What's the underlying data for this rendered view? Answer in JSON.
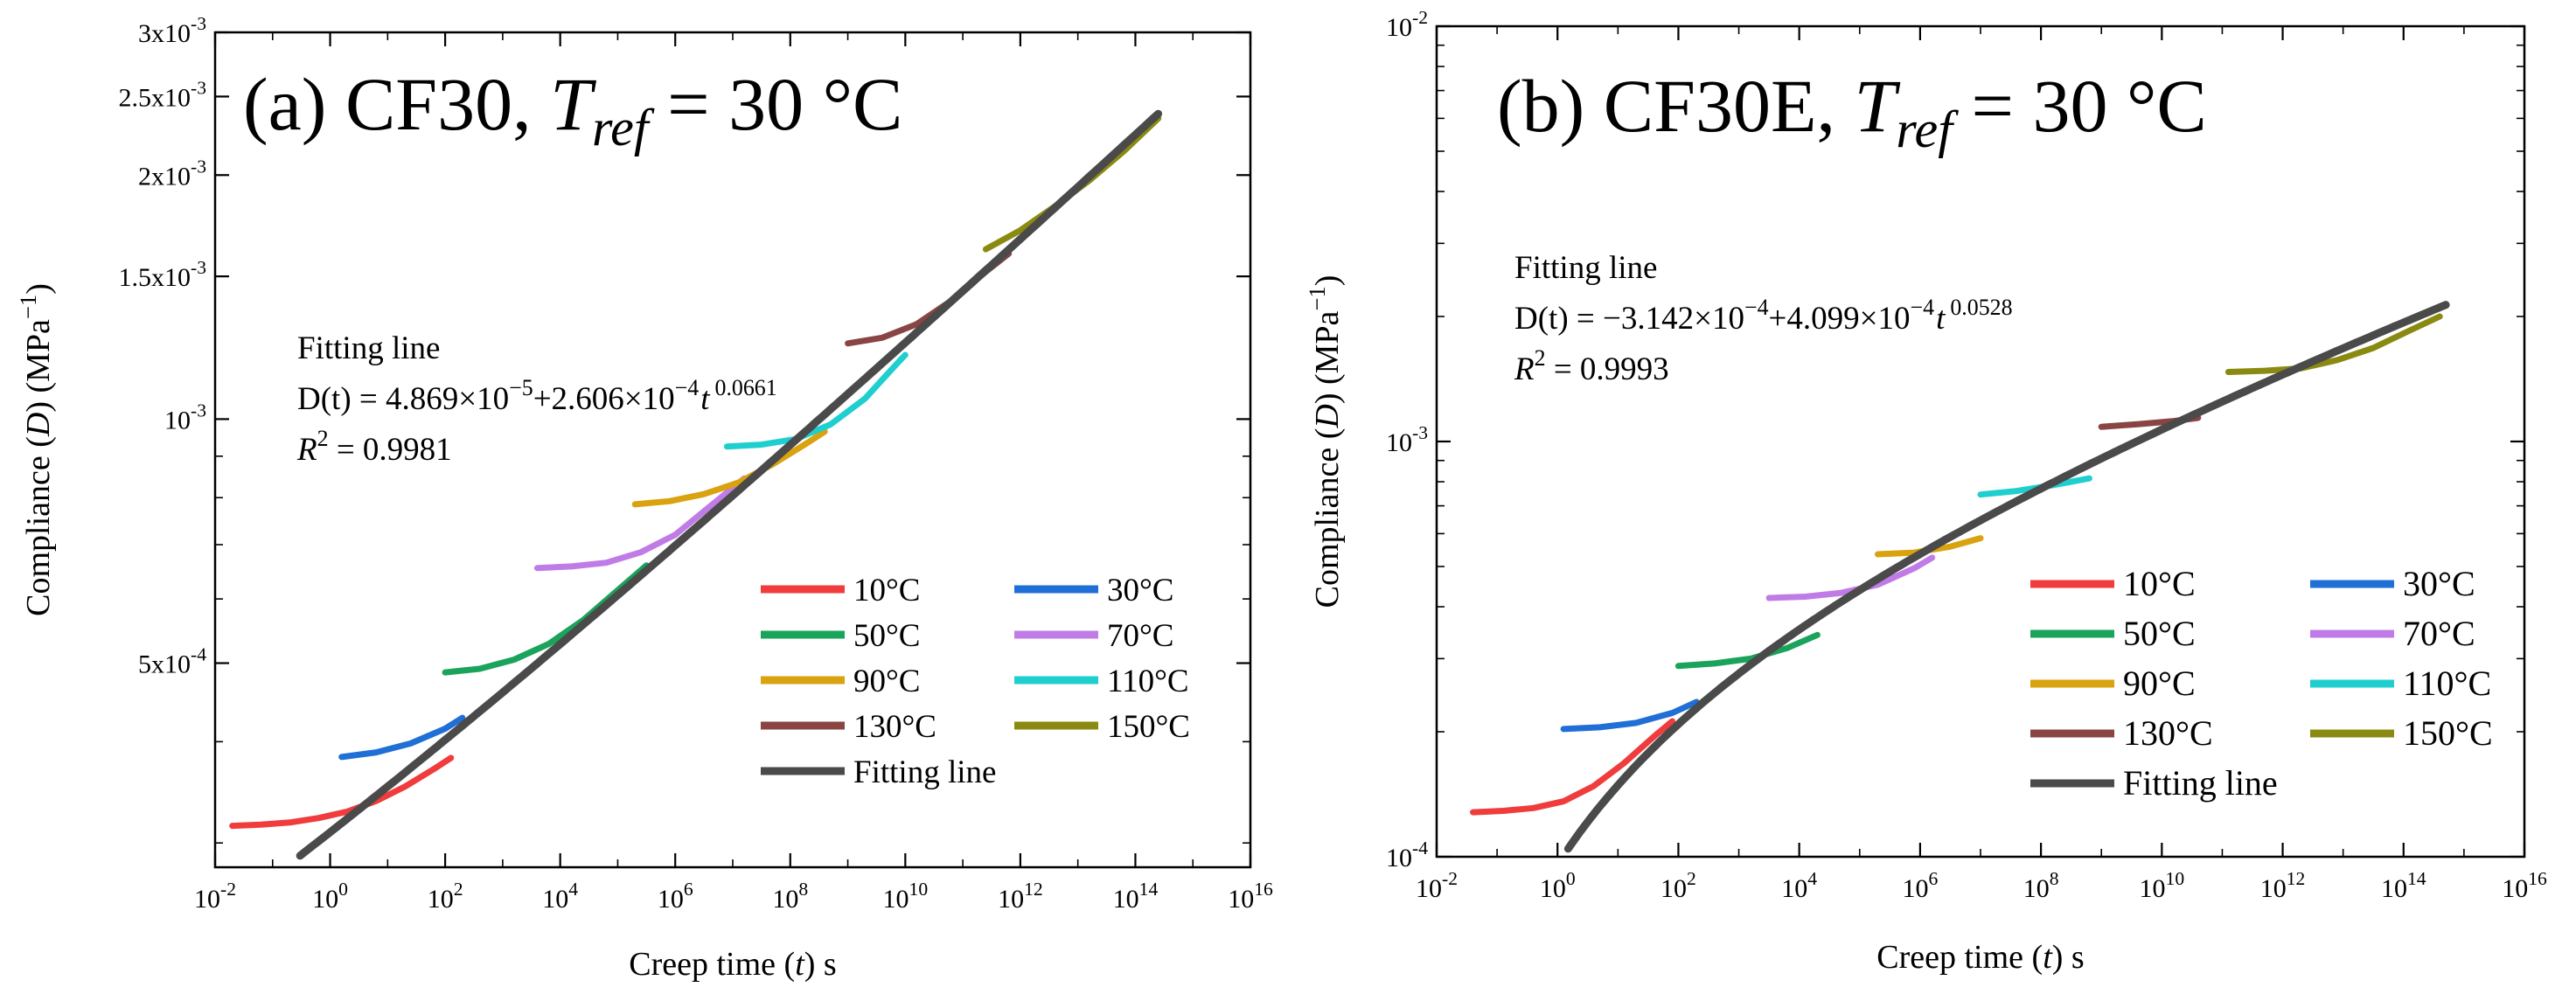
{
  "chart_data": [
    {
      "id": "a",
      "type": "line",
      "title": {
        "prefix": "(a) CF30, ",
        "T": "T",
        "sub": "ref",
        "suffix": " = 30 °C"
      },
      "xlabel": {
        "pre": "Creep time (",
        "var": "t",
        "post": ") s"
      },
      "ylabel": {
        "pre": "Compliance (",
        "var": "D",
        "post": ") (MPa"
      },
      "x_scale": "log",
      "y_scale": "log",
      "xlim": [
        0.01,
        1e+16
      ],
      "ylim": [
        0.00028,
        0.003
      ],
      "x_ticks": [
        {
          "v": 0.01,
          "base": "10",
          "exp": "-2"
        },
        {
          "v": 1,
          "base": "10",
          "exp": "0"
        },
        {
          "v": 100,
          "base": "10",
          "exp": "2"
        },
        {
          "v": 10000.0,
          "base": "10",
          "exp": "4"
        },
        {
          "v": 1000000.0,
          "base": "10",
          "exp": "6"
        },
        {
          "v": 100000000.0,
          "base": "10",
          "exp": "8"
        },
        {
          "v": 10000000000.0,
          "base": "10",
          "exp": "10"
        },
        {
          "v": 1000000000000.0,
          "base": "10",
          "exp": "12"
        },
        {
          "v": 100000000000000.0,
          "base": "10",
          "exp": "14"
        },
        {
          "v": 1e+16,
          "base": "10",
          "exp": "16"
        }
      ],
      "y_ticks": [
        {
          "v": 0.0005,
          "base": "5x10",
          "exp": "-4"
        },
        {
          "v": 0.001,
          "base": "10",
          "exp": "-3"
        },
        {
          "v": 0.0015,
          "base": "1.5x10",
          "exp": "-3"
        },
        {
          "v": 0.002,
          "base": "2x10",
          "exp": "-3"
        },
        {
          "v": 0.0025,
          "base": "2.5x10",
          "exp": "-3"
        },
        {
          "v": 0.003,
          "base": "3x10",
          "exp": "-3"
        }
      ],
      "fit_text": {
        "heading": "Fitting line",
        "eq_pre": "D(t) = 4.869×10",
        "eq_e1": "−5",
        "eq_mid": "+2.606×10",
        "eq_e2": "−4",
        "eq_t": "t",
        "eq_e3": "0.0661",
        "r2_label": "R",
        "r2_value": " = 0.9981"
      },
      "fit": {
        "a": 4.869e-05,
        "b": 0.0002606,
        "n": 0.0661,
        "x_from": 0.3,
        "x_to": 250000000000000.0,
        "name": "Fitting line",
        "color": "#4a4a4a"
      },
      "series": [
        {
          "name": "10°C",
          "color": "#f03c3c",
          "log_x": [
            -1.7,
            -1.2,
            -0.7,
            -0.2,
            0.3,
            0.8,
            1.3,
            1.8,
            2.1
          ],
          "y": [
            0.000315,
            0.000316,
            0.000318,
            0.000322,
            0.000328,
            0.000338,
            0.000352,
            0.00037,
            0.000382
          ]
        },
        {
          "name": "30°C",
          "color": "#1f6fd6",
          "log_x": [
            0.2,
            0.8,
            1.4,
            2.0,
            2.3
          ],
          "y": [
            0.000383,
            0.000388,
            0.000398,
            0.000415,
            0.000428
          ]
        },
        {
          "name": "50°C",
          "color": "#1aa35a",
          "log_x": [
            2.0,
            2.6,
            3.2,
            3.8,
            4.4,
            5.0,
            5.5
          ],
          "y": [
            0.000487,
            0.000492,
            0.000505,
            0.000528,
            0.000565,
            0.000615,
            0.00066
          ]
        },
        {
          "name": "70°C",
          "color": "#c07ce6",
          "log_x": [
            3.6,
            4.2,
            4.8,
            5.4,
            6.0,
            6.6,
            7.2
          ],
          "y": [
            0.000655,
            0.000658,
            0.000665,
            0.000685,
            0.00072,
            0.00078,
            0.000845
          ]
        },
        {
          "name": "90°C",
          "color": "#d9a20f",
          "log_x": [
            5.3,
            5.9,
            6.5,
            7.1,
            7.7,
            8.3,
            8.6
          ],
          "y": [
            0.000785,
            0.000792,
            0.000808,
            0.000835,
            0.00088,
            0.000935,
            0.000965
          ]
        },
        {
          "name": "110°C",
          "color": "#1fcfcf",
          "log_x": [
            6.9,
            7.5,
            8.1,
            8.7,
            9.3,
            9.9,
            10.0
          ],
          "y": [
            0.000925,
            0.00093,
            0.000945,
            0.000985,
            0.00106,
            0.00118,
            0.0012
          ]
        },
        {
          "name": "130°C",
          "color": "#8a4444",
          "log_x": [
            9.0,
            9.6,
            10.2,
            10.8,
            11.4,
            11.8
          ],
          "y": [
            0.00124,
            0.00126,
            0.00131,
            0.0014,
            0.00152,
            0.0016
          ]
        },
        {
          "name": "150°C",
          "color": "#8a8a12",
          "log_x": [
            11.4,
            12.0,
            12.6,
            13.2,
            13.8,
            14.4
          ],
          "y": [
            0.00162,
            0.00171,
            0.00183,
            0.00197,
            0.00214,
            0.00235
          ]
        }
      ]
    },
    {
      "id": "b",
      "type": "line",
      "title": {
        "prefix": "(b) CF30E, ",
        "T": "T",
        "sub": "ref",
        "suffix": " = 30 °C"
      },
      "xlabel": {
        "pre": "Creep time (",
        "var": "t",
        "post": ") s"
      },
      "ylabel": {
        "pre": "Compliance (",
        "var": "D",
        "post": ") (MPa"
      },
      "x_scale": "log",
      "y_scale": "log",
      "xlim": [
        0.01,
        1e+16
      ],
      "ylim": [
        0.0001,
        0.01
      ],
      "x_ticks": [
        {
          "v": 0.01,
          "base": "10",
          "exp": "-2"
        },
        {
          "v": 1,
          "base": "10",
          "exp": "0"
        },
        {
          "v": 100,
          "base": "10",
          "exp": "2"
        },
        {
          "v": 10000.0,
          "base": "10",
          "exp": "4"
        },
        {
          "v": 1000000.0,
          "base": "10",
          "exp": "6"
        },
        {
          "v": 100000000.0,
          "base": "10",
          "exp": "8"
        },
        {
          "v": 10000000000.0,
          "base": "10",
          "exp": "10"
        },
        {
          "v": 1000000000000.0,
          "base": "10",
          "exp": "12"
        },
        {
          "v": 100000000000000.0,
          "base": "10",
          "exp": "14"
        },
        {
          "v": 1e+16,
          "base": "10",
          "exp": "16"
        }
      ],
      "y_ticks": [
        {
          "v": 0.0001,
          "base": "10",
          "exp": "-4"
        },
        {
          "v": 0.001,
          "base": "10",
          "exp": "-3"
        },
        {
          "v": 0.01,
          "base": "10",
          "exp": "-2"
        }
      ],
      "fit_text": {
        "heading": "Fitting line",
        "eq_pre": "D(t) = −3.142×10",
        "eq_e1": "−4",
        "eq_mid": "+4.099×10",
        "eq_e2": "−4",
        "eq_t": "t",
        "eq_e3": "0.0528",
        "r2_label": "R",
        "r2_value": " = 0.9993"
      },
      "fit": {
        "a": -0.0003142,
        "b": 0.0004099,
        "n": 0.0528,
        "x_from": 1.5,
        "x_to": 500000000000000.0,
        "name": "Fitting line",
        "color": "#4a4a4a"
      },
      "series": [
        {
          "name": "10°C",
          "color": "#f03c3c",
          "log_x": [
            -1.4,
            -0.9,
            -0.4,
            0.1,
            0.6,
            1.1,
            1.6,
            1.9
          ],
          "y": [
            0.000128,
            0.000129,
            0.000131,
            0.000136,
            0.000148,
            0.000168,
            0.000195,
            0.000212
          ]
        },
        {
          "name": "30°C",
          "color": "#1f6fd6",
          "log_x": [
            0.1,
            0.7,
            1.3,
            1.9,
            2.3
          ],
          "y": [
            0.000203,
            0.000205,
            0.00021,
            0.000222,
            0.000236
          ]
        },
        {
          "name": "50°C",
          "color": "#1aa35a",
          "log_x": [
            2.0,
            2.6,
            3.2,
            3.8,
            4.3
          ],
          "y": [
            0.000288,
            0.000292,
            0.0003,
            0.000318,
            0.000342
          ]
        },
        {
          "name": "70°C",
          "color": "#c07ce6",
          "log_x": [
            3.5,
            4.1,
            4.7,
            5.3,
            5.9,
            6.2
          ],
          "y": [
            0.00042,
            0.000423,
            0.000432,
            0.000452,
            0.000495,
            0.000525
          ]
        },
        {
          "name": "90°C",
          "color": "#d9a20f",
          "log_x": [
            5.3,
            5.9,
            6.5,
            7.0
          ],
          "y": [
            0.000535,
            0.00054,
            0.000558,
            0.000585
          ]
        },
        {
          "name": "110°C",
          "color": "#1fcfcf",
          "log_x": [
            7.0,
            7.6,
            8.2,
            8.8
          ],
          "y": [
            0.000745,
            0.00076,
            0.000785,
            0.000815
          ]
        },
        {
          "name": "130°C",
          "color": "#8a4444",
          "log_x": [
            9.0,
            9.6,
            10.2,
            10.6
          ],
          "y": [
            0.001085,
            0.0011,
            0.00112,
            0.00114
          ]
        },
        {
          "name": "150°C",
          "color": "#8a8a12",
          "log_x": [
            11.1,
            11.7,
            12.3,
            12.9,
            13.5,
            14.1,
            14.6
          ],
          "y": [
            0.00147,
            0.00148,
            0.0015,
            0.00157,
            0.00168,
            0.00185,
            0.002
          ]
        }
      ]
    }
  ]
}
